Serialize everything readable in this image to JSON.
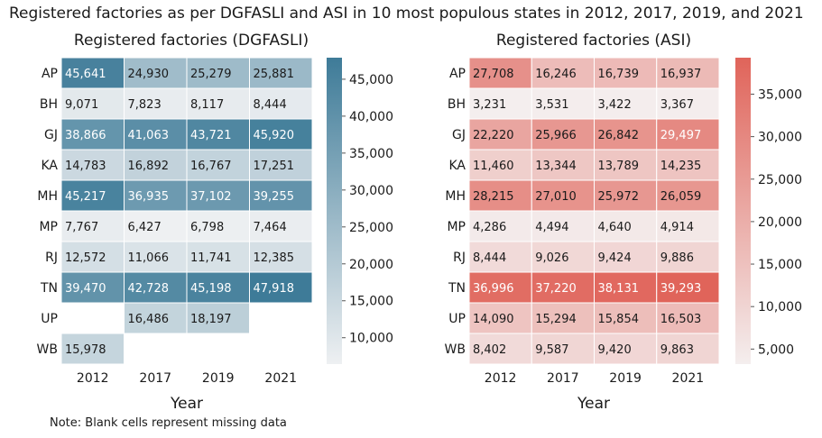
{
  "title": "Registered factories as per DGFASLI and ASI in 10 most populous states in 2012, 2017, 2019, and 2021",
  "note": "Note: Blank cells represent missing data",
  "chart_data": [
    {
      "type": "heatmap",
      "title": "Registered factories (DGFASLI)",
      "xlabel": "Year",
      "ylabel": "",
      "x": [
        "2012",
        "2017",
        "2019",
        "2021"
      ],
      "y": [
        "AP",
        "BH",
        "GJ",
        "KA",
        "MH",
        "MP",
        "RJ",
        "TN",
        "UP",
        "WB"
      ],
      "values": [
        [
          45641,
          24930,
          25279,
          25881
        ],
        [
          9071,
          7823,
          8117,
          8444
        ],
        [
          38866,
          41063,
          43721,
          45920
        ],
        [
          14783,
          16892,
          16767,
          17251
        ],
        [
          45217,
          36935,
          37102,
          39255
        ],
        [
          7767,
          6427,
          6798,
          7464
        ],
        [
          12572,
          11066,
          11741,
          12385
        ],
        [
          39470,
          42728,
          45198,
          47918
        ],
        [
          null,
          16486,
          18197,
          null
        ],
        [
          15978,
          null,
          null,
          null
        ]
      ],
      "colorbar": {
        "ticks": [
          10000,
          15000,
          20000,
          25000,
          30000,
          35000,
          40000,
          45000
        ],
        "tick_labels": [
          "10,000",
          "15,000",
          "20,000",
          "25,000",
          "30,000",
          "35,000",
          "40,000",
          "45,000"
        ],
        "range": [
          6427,
          47918
        ]
      },
      "colors": {
        "low": "#eef0f2",
        "high": "#3e7b98"
      }
    },
    {
      "type": "heatmap",
      "title": "Registered factories (ASI)",
      "xlabel": "Year",
      "ylabel": "",
      "x": [
        "2012",
        "2017",
        "2019",
        "2021"
      ],
      "y": [
        "AP",
        "BH",
        "GJ",
        "KA",
        "MH",
        "MP",
        "RJ",
        "TN",
        "UP",
        "WB"
      ],
      "values": [
        [
          27708,
          16246,
          16739,
          16937
        ],
        [
          3231,
          3531,
          3422,
          3367
        ],
        [
          22220,
          25966,
          26842,
          29497
        ],
        [
          11460,
          13344,
          13789,
          14235
        ],
        [
          28215,
          27010,
          25972,
          26059
        ],
        [
          4286,
          4494,
          4640,
          4914
        ],
        [
          8444,
          9026,
          9424,
          9886
        ],
        [
          36996,
          37220,
          38131,
          39293
        ],
        [
          14090,
          15294,
          15854,
          16503
        ],
        [
          8402,
          9587,
          9420,
          9863
        ]
      ],
      "colorbar": {
        "ticks": [
          5000,
          10000,
          15000,
          20000,
          25000,
          30000,
          35000
        ],
        "tick_labels": [
          "5,000",
          "10,000",
          "15,000",
          "20,000",
          "25,000",
          "30,000",
          "35,000"
        ],
        "range": [
          3231,
          39293
        ]
      },
      "colors": {
        "low": "#f4eeee",
        "high": "#e0645a"
      }
    }
  ]
}
